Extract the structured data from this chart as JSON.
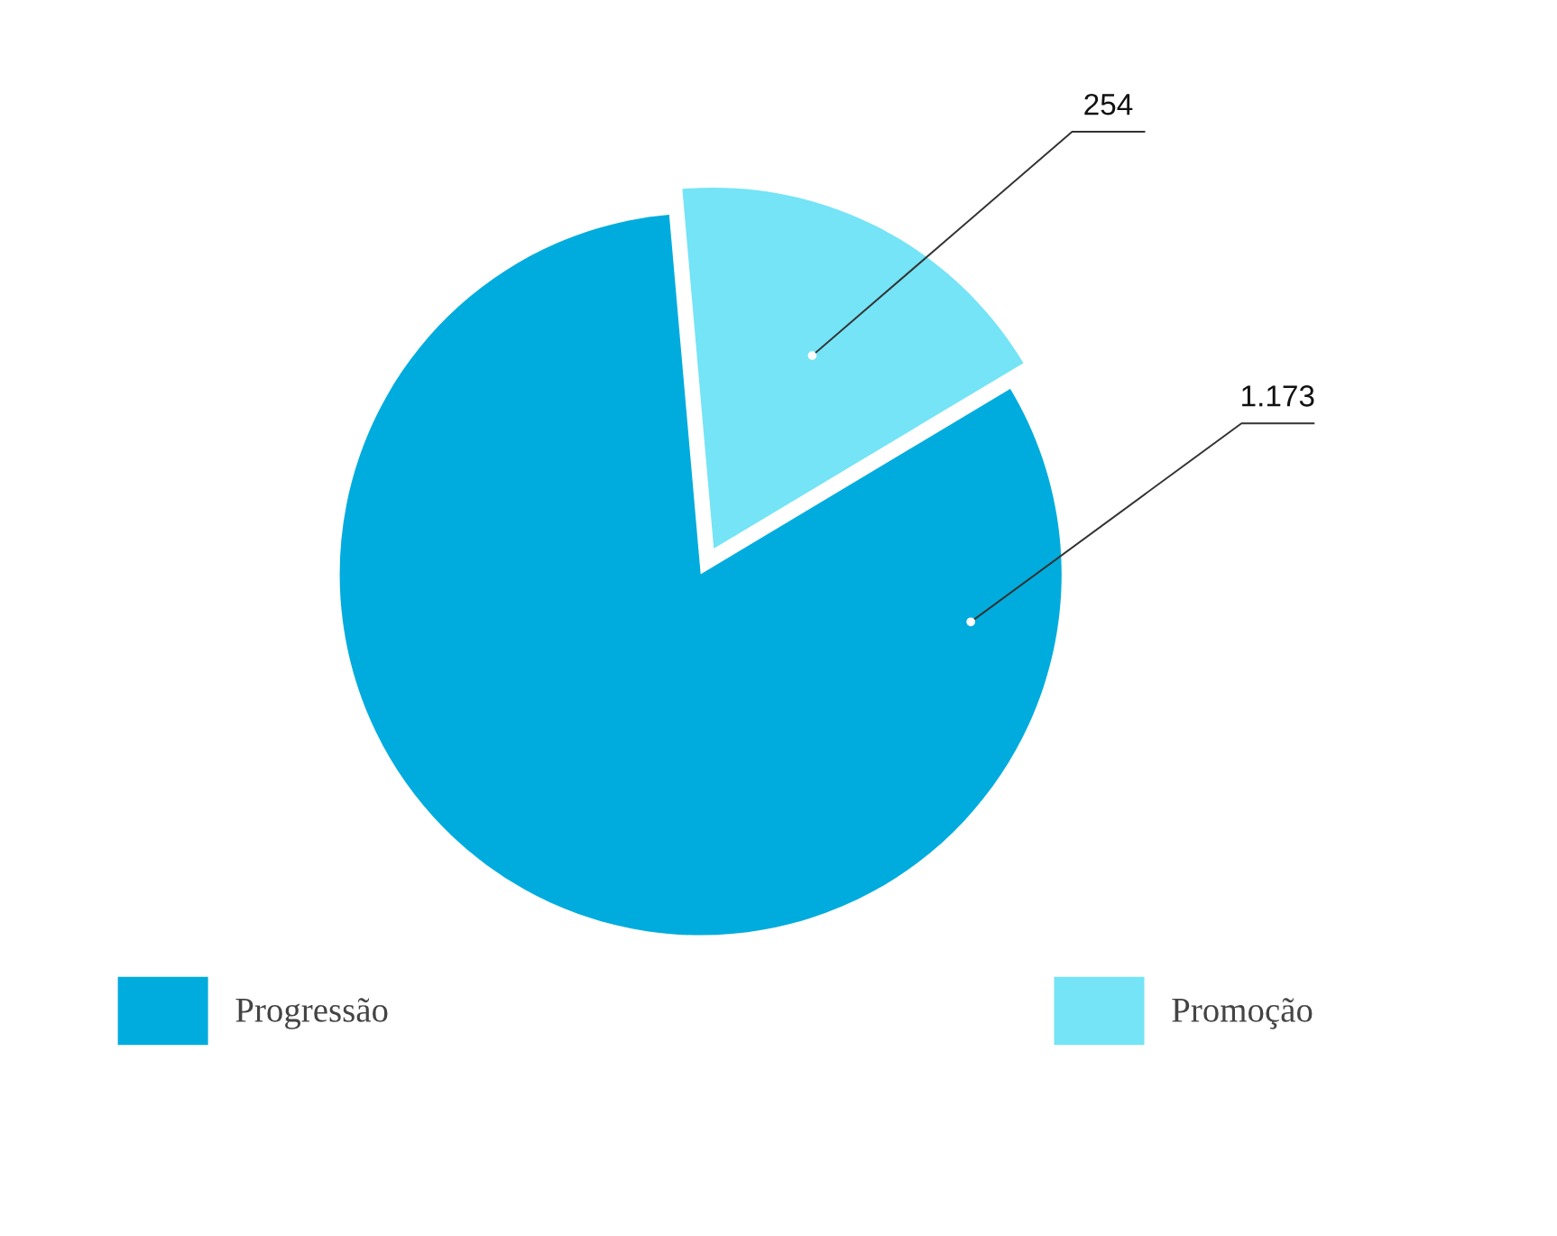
{
  "chart_data": {
    "type": "pie",
    "categories": [
      "Progressão",
      "Promoção"
    ],
    "values": [
      1173,
      254
    ],
    "colors": [
      "#00acdd",
      "#74e4f6"
    ],
    "value_labels": [
      "1.173",
      "254"
    ],
    "legend": "bottom"
  }
}
